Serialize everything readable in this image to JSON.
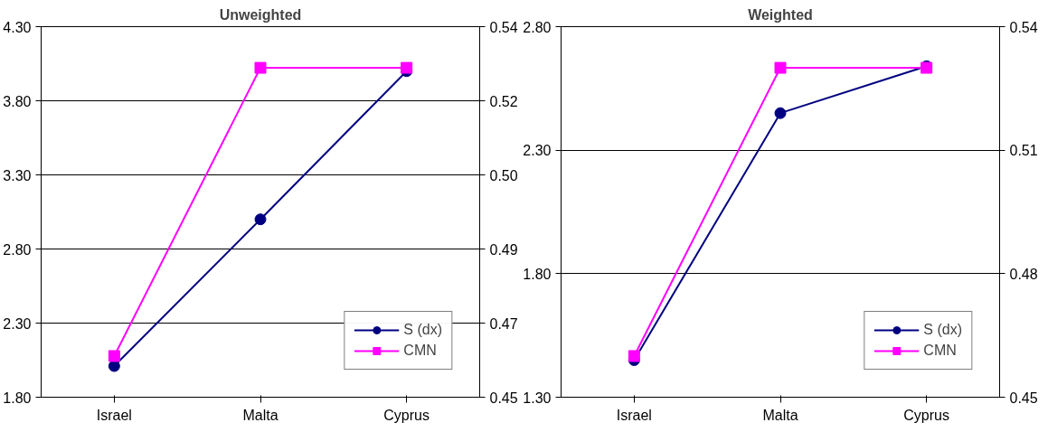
{
  "chart_data": [
    {
      "type": "line",
      "title": "Unweighted",
      "categories": [
        "Israel",
        "Malta",
        "Cyprus"
      ],
      "ylim": [
        1.8,
        4.3
      ],
      "yticks": [
        {
          "value": 1.8,
          "label": "1.80"
        },
        {
          "value": 2.3,
          "label": "2.30"
        },
        {
          "value": 2.8,
          "label": "2.80"
        },
        {
          "value": 3.3,
          "label": "3.30"
        },
        {
          "value": 3.8,
          "label": "3.80"
        },
        {
          "value": 4.3,
          "label": "4.30"
        }
      ],
      "y2lim": [
        0.45,
        0.54
      ],
      "y2ticks": [
        {
          "value": 0.45,
          "label": "0.45"
        },
        {
          "value": 0.468,
          "label": "0.47"
        },
        {
          "value": 0.486,
          "label": "0.49"
        },
        {
          "value": 0.504,
          "label": "0.50"
        },
        {
          "value": 0.522,
          "label": "0.52"
        },
        {
          "value": 0.54,
          "label": "0.54"
        }
      ],
      "series": [
        {
          "name": "S (dx)",
          "color": "#000080",
          "marker": "circle",
          "values": [
            2.01,
            3.0,
            4.0
          ]
        },
        {
          "name": "CMN",
          "color": "#ff00ff",
          "marker": "square",
          "axis": "y2",
          "values": [
            0.46,
            0.53,
            0.53
          ]
        }
      ],
      "grid": "y",
      "legend": "bottom right"
    },
    {
      "type": "line",
      "title": "Weighted",
      "categories": [
        "Israel",
        "Malta",
        "Cyprus"
      ],
      "ylim": [
        1.3,
        2.8
      ],
      "yticks": [
        {
          "value": 1.3,
          "label": "1.30"
        },
        {
          "value": 1.8,
          "label": "1.80"
        },
        {
          "value": 2.3,
          "label": "2.30"
        },
        {
          "value": 2.8,
          "label": "2.80"
        }
      ],
      "y2lim": [
        0.45,
        0.54
      ],
      "y2ticks": [
        {
          "value": 0.45,
          "label": "0.45"
        },
        {
          "value": 0.48,
          "label": "0.48"
        },
        {
          "value": 0.51,
          "label": "0.51"
        },
        {
          "value": 0.54,
          "label": "0.54"
        }
      ],
      "series": [
        {
          "name": "S (dx)",
          "color": "#000080",
          "marker": "circle",
          "values": [
            1.45,
            2.45,
            2.64
          ]
        },
        {
          "name": "CMN",
          "color": "#ff00ff",
          "marker": "square",
          "axis": "y2",
          "values": [
            0.46,
            0.53,
            0.53
          ]
        }
      ],
      "grid": "y",
      "legend": "bottom right"
    }
  ]
}
